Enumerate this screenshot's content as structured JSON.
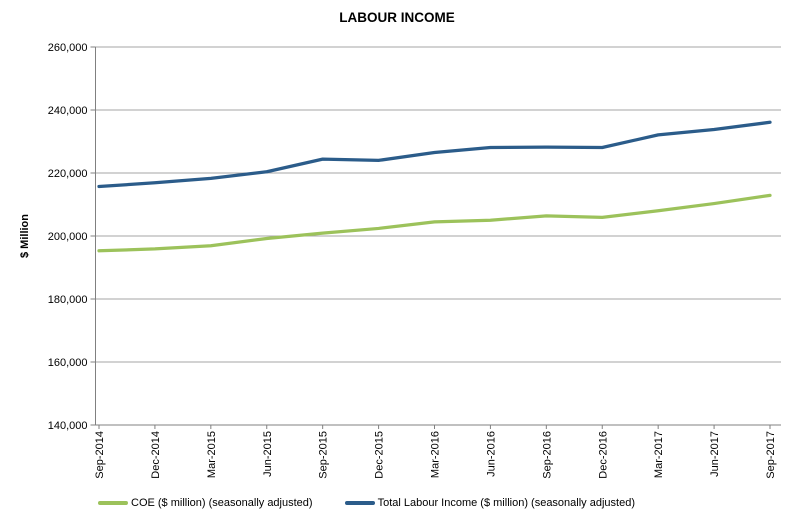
{
  "chart_data": {
    "type": "line",
    "title": "LABOUR INCOME",
    "xlabel": "",
    "ylabel": "$ Million",
    "ylim": [
      140000,
      260000
    ],
    "ytick_step": 20000,
    "ytick_labels": [
      "140,000",
      "160,000",
      "180,000",
      "200,000",
      "220,000",
      "240,000",
      "260,000"
    ],
    "grid": true,
    "legend_position": "bottom",
    "categories": [
      "Sep-2014",
      "Dec-2014",
      "Mar-2015",
      "Jun-2015",
      "Sep-2015",
      "Dec-2015",
      "Mar-2016",
      "Jun-2016",
      "Sep-2016",
      "Dec-2016",
      "Mar-2017",
      "Jun-2017",
      "Sep-2017"
    ],
    "series": [
      {
        "id": "coe",
        "name": "COE ($ million) (seasonally adjusted)",
        "color": "#9CC25B",
        "values": [
          195300,
          195900,
          196900,
          199200,
          200900,
          202400,
          204500,
          205000,
          206400,
          205900,
          208000,
          210300,
          212900
        ]
      },
      {
        "id": "total-labour-income",
        "name": "Total Labour Income ($ million) (seasonally adjusted)",
        "color": "#2B5C8A",
        "values": [
          215700,
          216900,
          218300,
          220400,
          224400,
          224000,
          226500,
          228100,
          228200,
          228100,
          232100,
          233800,
          236100
        ]
      }
    ],
    "colors": {
      "gridline": "#A6A6A6",
      "axis": "#808080",
      "text": "#000000"
    }
  }
}
